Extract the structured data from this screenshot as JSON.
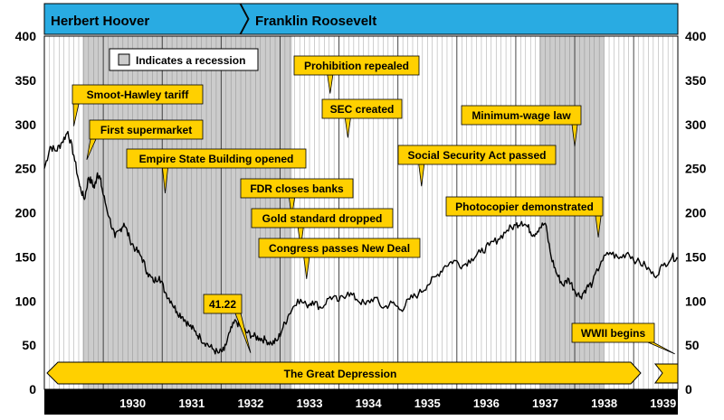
{
  "banners": [
    {
      "label": "Herbert Hoover",
      "color": "#29abe2"
    },
    {
      "label": "Franklin Roosevelt",
      "color": "#29abe2"
    }
  ],
  "legend": {
    "label": "Indicates a recession",
    "swatch_color": "#cccccc"
  },
  "accent_color": "#ffd000",
  "chart_data": {
    "type": "line",
    "x_unit": "year",
    "xlim": [
      1929.0,
      1939.75
    ],
    "ylim": [
      0,
      400
    ],
    "y_ticks": [
      0,
      50,
      100,
      150,
      200,
      250,
      300,
      350,
      400
    ],
    "x_tick_labels": [
      "1930",
      "1931",
      "1932",
      "1933",
      "1934",
      "1935",
      "1936",
      "1937",
      "1938",
      "1939"
    ],
    "grid": true,
    "recessions": [
      [
        1929.65,
        1933.2
      ],
      [
        1937.4,
        1938.5
      ]
    ],
    "series": [
      {
        "x": [
          1929.0,
          1929.1,
          1929.2,
          1929.3,
          1929.4,
          1929.5,
          1929.6,
          1929.68,
          1929.75,
          1929.8,
          1929.85,
          1929.9,
          1929.95,
          1930.0,
          1930.1,
          1930.2,
          1930.28,
          1930.35,
          1930.45,
          1930.55,
          1930.65,
          1930.75,
          1930.85,
          1930.95,
          1931.05,
          1931.15,
          1931.25,
          1931.35,
          1931.45,
          1931.55,
          1931.65,
          1931.75,
          1931.85,
          1931.95,
          1932.05,
          1932.15,
          1932.25,
          1932.35,
          1932.45,
          1932.55,
          1932.65,
          1932.75,
          1932.85,
          1932.95,
          1933.05,
          1933.15,
          1933.3,
          1933.45,
          1933.55,
          1933.7,
          1933.85,
          1934.0,
          1934.15,
          1934.3,
          1934.45,
          1934.6,
          1934.75,
          1934.9,
          1935.05,
          1935.2,
          1935.35,
          1935.5,
          1935.65,
          1935.8,
          1935.95,
          1936.1,
          1936.25,
          1936.4,
          1936.55,
          1936.7,
          1936.85,
          1937.0,
          1937.1,
          1937.2,
          1937.3,
          1937.4,
          1937.5,
          1937.6,
          1937.7,
          1937.8,
          1937.9,
          1938.0,
          1938.1,
          1938.2,
          1938.3,
          1938.45,
          1938.6,
          1938.75,
          1938.9,
          1939.05,
          1939.2,
          1939.35,
          1939.5,
          1939.65,
          1939.75
        ],
        "y": [
          250,
          275,
          270,
          280,
          292,
          265,
          230,
          215,
          240,
          235,
          228,
          245,
          238,
          220,
          195,
          172,
          180,
          188,
          170,
          158,
          150,
          132,
          122,
          128,
          110,
          100,
          88,
          82,
          73,
          66,
          58,
          52,
          46,
          41,
          44,
          65,
          78,
          68,
          64,
          60,
          58,
          56,
          52,
          55,
          70,
          85,
          102,
          95,
          100,
          92,
          105,
          100,
          110,
          102,
          96,
          104,
          92,
          98,
          90,
          102,
          108,
          118,
          128,
          140,
          146,
          140,
          148,
          155,
          163,
          170,
          180,
          186,
          190,
          184,
          175,
          183,
          188,
          150,
          130,
          118,
          125,
          112,
          105,
          115,
          120,
          145,
          155,
          148,
          155,
          145,
          140,
          128,
          140,
          150,
          148
        ]
      }
    ],
    "annotations": [
      {
        "text": "Smoot-Hawley tariff",
        "x": 1929.5,
        "y": 298
      },
      {
        "text": "First supermarket",
        "x": 1929.72,
        "y": 260
      },
      {
        "text": "Empire State Building opened",
        "x": 1931.05,
        "y": 222
      },
      {
        "text": "FDR closes banks",
        "x": 1933.2,
        "y": 195
      },
      {
        "text": "Gold standard dropped",
        "x": 1933.35,
        "y": 160
      },
      {
        "text": "Congress passes New Deal",
        "x": 1933.45,
        "y": 125
      },
      {
        "text": "Prohibition repealed",
        "x": 1933.85,
        "y": 335
      },
      {
        "text": "SEC created",
        "x": 1934.15,
        "y": 285
      },
      {
        "text": "Social Security Act passed",
        "x": 1935.4,
        "y": 230
      },
      {
        "text": "Minimum-wage law",
        "x": 1938.0,
        "y": 275
      },
      {
        "text": "Photocopier demonstrated",
        "x": 1938.4,
        "y": 172
      },
      {
        "text": "41.22",
        "x": 1932.5,
        "y": 41.22
      },
      {
        "text": "WWII begins",
        "x": 1939.7,
        "y": 40
      }
    ],
    "depression_label": "The Great Depression"
  }
}
